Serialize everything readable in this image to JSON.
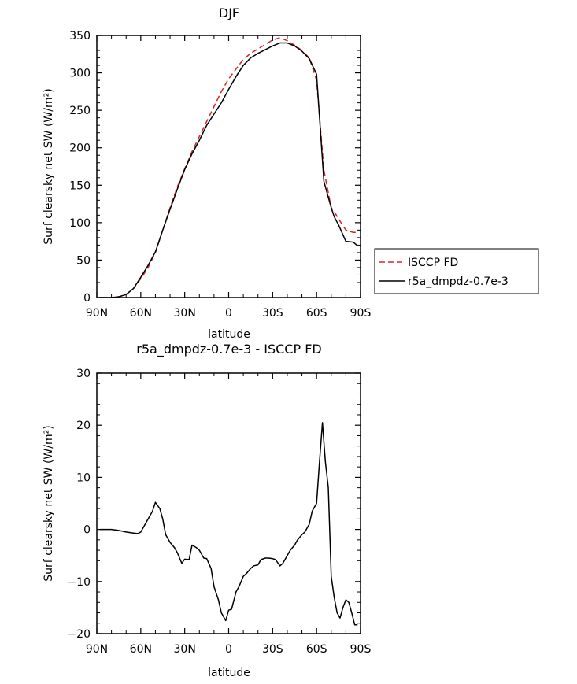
{
  "chart_data": [
    {
      "type": "line",
      "title": "DJF",
      "xlabel": "latitude",
      "ylabel": "Surf clearsky net SW (W/m²)",
      "xlim": [
        90,
        -90
      ],
      "ylim": [
        0,
        350
      ],
      "x_ticks": [
        90,
        60,
        30,
        0,
        -30,
        -60,
        -90
      ],
      "x_tick_labels": [
        "90N",
        "60N",
        "30N",
        "0",
        "30S",
        "60S",
        "90S"
      ],
      "y_ticks": [
        0,
        50,
        100,
        150,
        200,
        250,
        300,
        350
      ],
      "y_tick_labels": [
        "0",
        "50",
        "100",
        "150",
        "200",
        "250",
        "300",
        "350"
      ],
      "legend_position": "right",
      "series": [
        {
          "name": "ISCCP FD",
          "color": "#d62728",
          "dash": "dashed",
          "x": [
            88,
            80,
            75,
            70,
            65,
            60,
            55,
            50,
            45,
            40,
            35,
            30,
            25,
            20,
            15,
            10,
            5,
            0,
            -5,
            -10,
            -15,
            -20,
            -25,
            -30,
            -35,
            -40,
            -45,
            -50,
            -55,
            -60,
            -65,
            -70,
            -72,
            -75,
            -80,
            -85,
            -88
          ],
          "y": [
            0,
            0,
            1,
            4,
            12,
            25,
            40,
            60,
            90,
            120,
            148,
            172,
            195,
            215,
            235,
            255,
            275,
            292,
            305,
            318,
            326,
            332,
            338,
            344,
            347,
            343,
            337,
            330,
            320,
            290,
            170,
            120,
            115,
            105,
            90,
            87,
            87
          ]
        },
        {
          "name": "r5a_dmpdz-0.7e-3",
          "color": "#000000",
          "dash": "solid",
          "x": [
            88,
            80,
            75,
            70,
            65,
            60,
            55,
            50,
            45,
            40,
            35,
            30,
            25,
            20,
            15,
            10,
            5,
            0,
            -5,
            -10,
            -15,
            -20,
            -25,
            -30,
            -35,
            -40,
            -45,
            -50,
            -55,
            -60,
            -65,
            -70,
            -72,
            -75,
            -80,
            -85,
            -88
          ],
          "y": [
            0,
            0,
            1,
            4,
            12,
            27,
            43,
            61,
            90,
            118,
            145,
            171,
            192,
            210,
            230,
            245,
            260,
            278,
            295,
            310,
            320,
            326,
            331,
            336,
            340,
            340,
            336,
            329,
            319,
            298,
            155,
            120,
            108,
            97,
            75,
            74,
            69
          ]
        }
      ]
    },
    {
      "type": "line",
      "title": "r5a_dmpdz-0.7e-3 - ISCCP FD",
      "xlabel": "latitude",
      "ylabel": "Surf clearsky net SW (W/m²)",
      "xlim": [
        90,
        -90
      ],
      "ylim": [
        -20,
        30
      ],
      "x_ticks": [
        90,
        60,
        30,
        0,
        -30,
        -60,
        -90
      ],
      "x_tick_labels": [
        "90N",
        "60N",
        "30N",
        "0",
        "30S",
        "60S",
        "90S"
      ],
      "y_ticks": [
        -20,
        -10,
        0,
        10,
        20,
        30
      ],
      "y_tick_labels": [
        "−20",
        "−10",
        "0",
        "10",
        "20",
        "30"
      ],
      "series": [
        {
          "color": "#000000",
          "dash": "solid",
          "x": [
            88,
            80,
            75,
            70,
            65,
            62,
            60,
            58,
            55,
            52,
            50,
            47,
            45,
            43,
            40,
            37,
            35,
            32,
            30,
            27,
            25,
            22,
            20,
            17,
            15,
            12,
            10,
            7,
            5,
            2,
            0,
            -2,
            -5,
            -7,
            -10,
            -12,
            -15,
            -17,
            -20,
            -22,
            -25,
            -27,
            -30,
            -32,
            -35,
            -37,
            -40,
            -42,
            -45,
            -47,
            -50,
            -52,
            -55,
            -57,
            -60,
            -62,
            -64,
            -66,
            -68,
            -70,
            -72,
            -74,
            -76,
            -78,
            -80,
            -82,
            -84,
            -86,
            -88
          ],
          "y": [
            0,
            0,
            -0.2,
            -0.5,
            -0.7,
            -0.8,
            -0.5,
            0.5,
            2,
            3.5,
            5.2,
            4,
            2,
            -1,
            -2.5,
            -3.5,
            -4.5,
            -6.5,
            -5.7,
            -5.8,
            -3,
            -3.5,
            -4,
            -5.5,
            -5.6,
            -7.5,
            -11,
            -13.5,
            -16,
            -17.5,
            -15.5,
            -15.3,
            -12,
            -11,
            -9,
            -8.5,
            -7.5,
            -7,
            -6.8,
            -5.8,
            -5.5,
            -5.5,
            -5.6,
            -5.8,
            -7,
            -6.5,
            -5,
            -4,
            -3,
            -2,
            -1,
            -0.5,
            1,
            3.5,
            5,
            13,
            20.5,
            13,
            8,
            -9,
            -13,
            -16,
            -17,
            -15,
            -13.5,
            -14,
            -16,
            -18.3,
            -18.3
          ]
        }
      ]
    }
  ]
}
